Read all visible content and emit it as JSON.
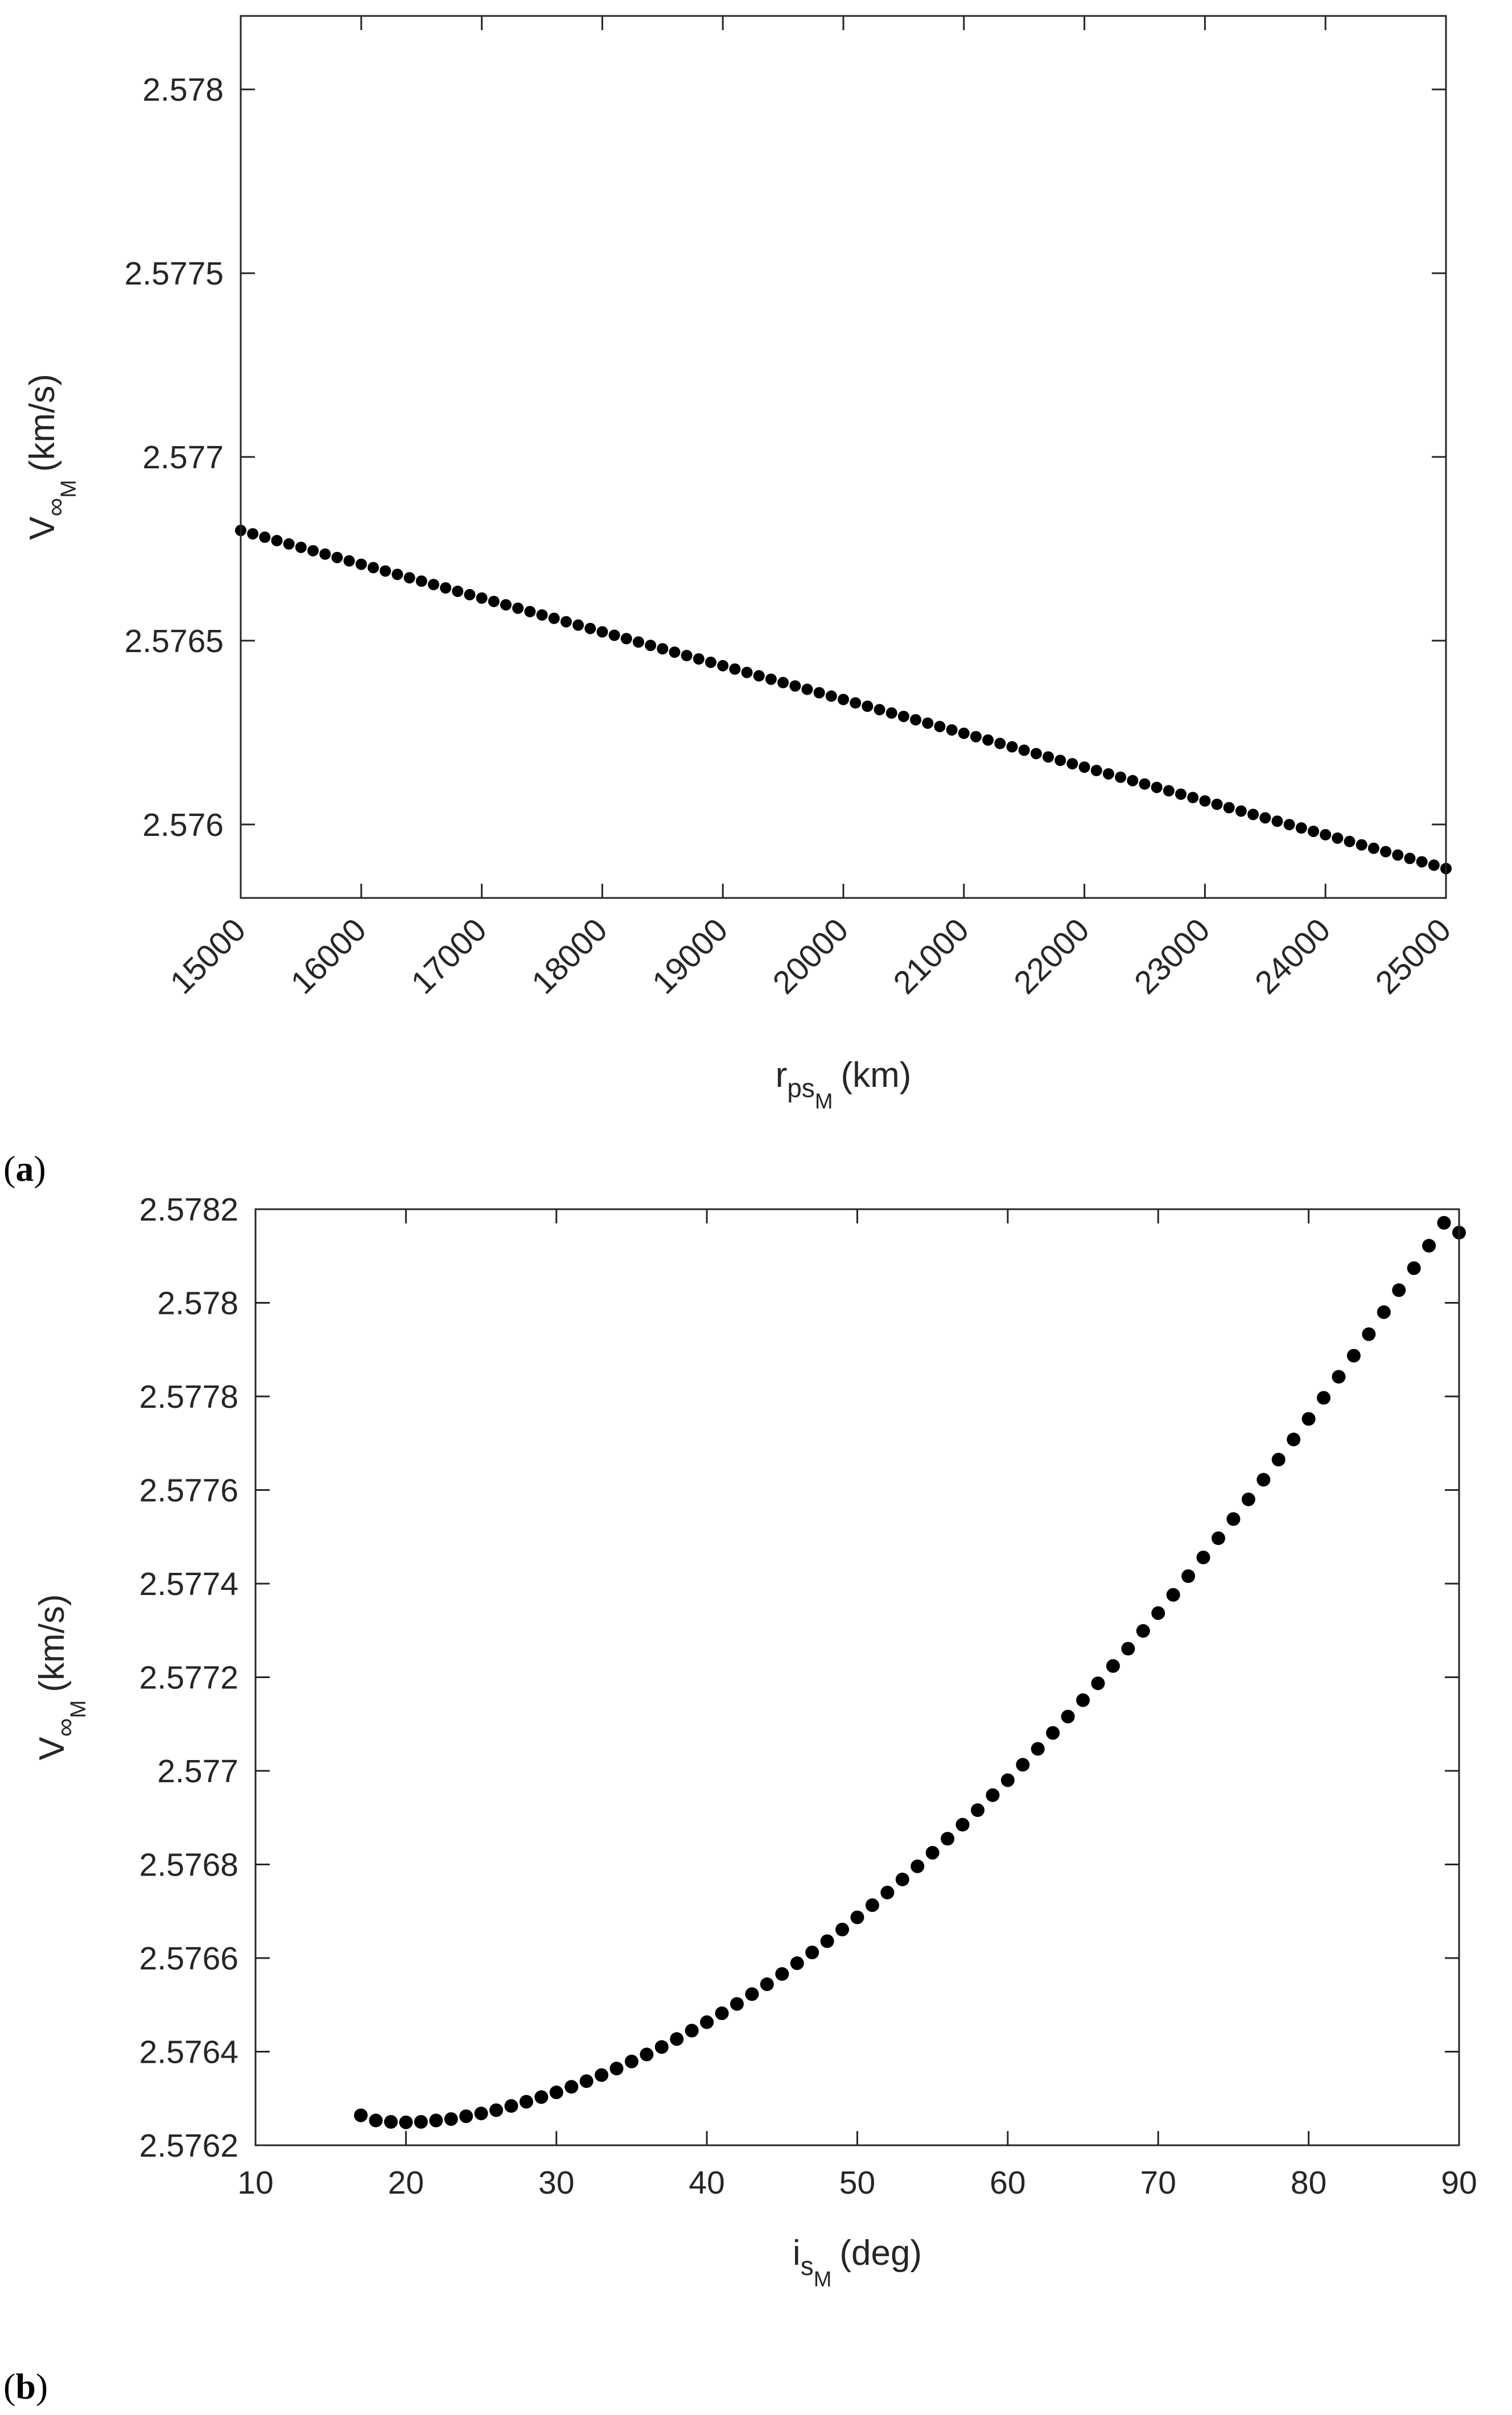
{
  "colors": {
    "marker": "#000000",
    "axis": "#262626",
    "background": "#ffffff"
  },
  "chart_data": [
    {
      "type": "scatter",
      "panel_label": "a",
      "xlabel": {
        "main": "r",
        "sub": "ps",
        "subsub": "M",
        "unit": "(km)"
      },
      "ylabel": {
        "main": "V",
        "sub": "∞",
        "subsub": "M",
        "unit": "(km/s)"
      },
      "xlim": [
        15000,
        25000
      ],
      "ylim": [
        2.5758,
        2.5782
      ],
      "xticks": [
        15000,
        16000,
        17000,
        18000,
        19000,
        20000,
        21000,
        22000,
        23000,
        24000,
        25000
      ],
      "xtick_labels": [
        "15000",
        "16000",
        "17000",
        "18000",
        "19000",
        "20000",
        "21000",
        "22000",
        "23000",
        "24000",
        "25000"
      ],
      "yticks": [
        2.576,
        2.5765,
        2.577,
        2.5775,
        2.578
      ],
      "ytick_labels": [
        "2.576",
        "2.5765",
        "2.577",
        "2.5775",
        "2.578"
      ],
      "grid": false,
      "series": [
        {
          "x_start": 15000,
          "x_end": 25000,
          "x_step": 100,
          "y_start": 2.5768,
          "y_end": 2.57588
        }
      ]
    },
    {
      "type": "scatter",
      "panel_label": "b",
      "xlabel": {
        "main": "i",
        "sub": "s",
        "subsub": "M",
        "unit": "(deg)"
      },
      "ylabel": {
        "main": "V",
        "sub": "∞",
        "subsub": "M",
        "unit": "(km/s)"
      },
      "xlim": [
        10,
        90
      ],
      "ylim": [
        2.5762,
        2.5782
      ],
      "xticks": [
        10,
        20,
        30,
        40,
        50,
        60,
        70,
        80,
        90
      ],
      "xtick_labels": [
        "10",
        "20",
        "30",
        "40",
        "50",
        "60",
        "70",
        "80",
        "90"
      ],
      "yticks": [
        2.5762,
        2.5764,
        2.5766,
        2.5768,
        2.577,
        2.5772,
        2.5774,
        2.5776,
        2.5778,
        2.578,
        2.5782
      ],
      "ytick_labels": [
        "2.5762",
        "2.5764",
        "2.5766",
        "2.5768",
        "2.577",
        "2.5772",
        "2.5774",
        "2.5776",
        "2.5778",
        "2.578",
        "2.5782"
      ],
      "grid": false,
      "series": [
        {
          "x": [
            17,
            18,
            19,
            20,
            21,
            22,
            23,
            24,
            25,
            26,
            27,
            28,
            29,
            30,
            31,
            32,
            33,
            34,
            35,
            36,
            37,
            38,
            39,
            40,
            41,
            42,
            43,
            44,
            45,
            46,
            47,
            48,
            49,
            50,
            51,
            52,
            53,
            54,
            55,
            56,
            57,
            58,
            59,
            60,
            61,
            62,
            63,
            64,
            65,
            66,
            67,
            68,
            69,
            70,
            71,
            72,
            73,
            74,
            75,
            76,
            77,
            78,
            79,
            80,
            81,
            82,
            83,
            84,
            85,
            86,
            87,
            88,
            89,
            90
          ],
          "y": [
            2.576264,
            2.576253,
            2.57625,
            2.576249,
            2.57625,
            2.576253,
            2.576256,
            2.576262,
            2.576268,
            2.576275,
            2.576284,
            2.576293,
            2.576303,
            2.576313,
            2.576325,
            2.576337,
            2.57635,
            2.576364,
            2.576379,
            2.576394,
            2.57641,
            2.576427,
            2.576445,
            2.576463,
            2.576482,
            2.576502,
            2.576523,
            2.576544,
            2.576566,
            2.576589,
            2.576612,
            2.576636,
            2.576661,
            2.576687,
            2.576713,
            2.57674,
            2.576768,
            2.576796,
            2.576825,
            2.576855,
            2.576885,
            2.576916,
            2.576948,
            2.57698,
            2.577013,
            2.577047,
            2.577081,
            2.577116,
            2.577151,
            2.577187,
            2.577224,
            2.577261,
            2.577299,
            2.577337,
            2.577376,
            2.577416,
            2.577456,
            2.577497,
            2.577538,
            2.57758,
            2.577622,
            2.577665,
            2.577708,
            2.577752,
            2.577797,
            2.577842,
            2.577887,
            2.577933,
            2.57798,
            2.578027,
            2.578074,
            2.578122,
            2.578171,
            2.57815
          ]
        }
      ]
    }
  ]
}
